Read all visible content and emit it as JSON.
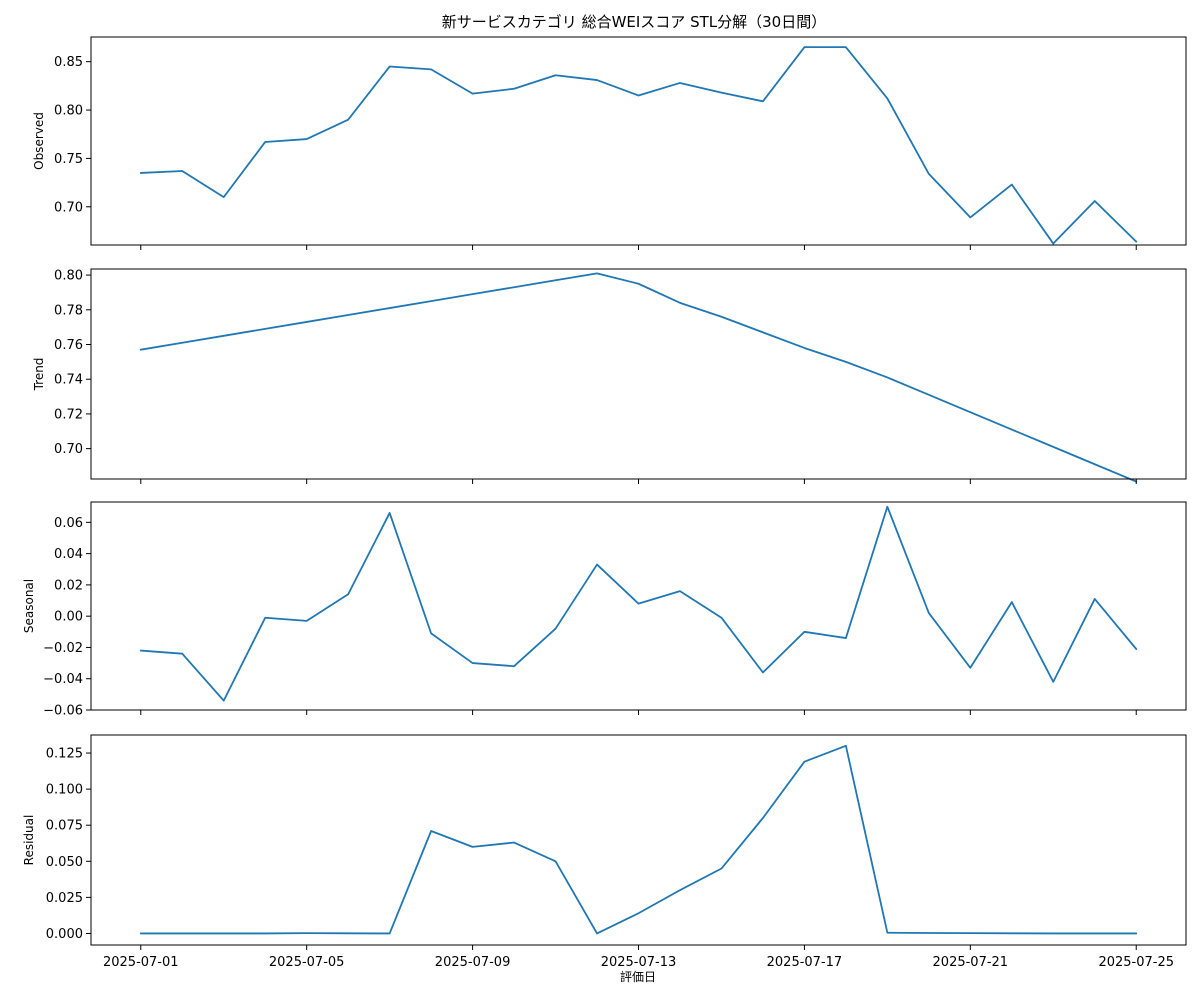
{
  "chart_data": {
    "type": "line",
    "title": "新サービスカテゴリ 総合WEIスコア STL分解（30日間）",
    "xlabel": "評価日",
    "x_tick_labels": [
      "2025-07-01",
      "2025-07-05",
      "2025-07-09",
      "2025-07-13",
      "2025-07-17",
      "2025-07-21",
      "2025-07-25"
    ],
    "x": [
      "2025-07-01",
      "2025-07-02",
      "2025-07-03",
      "2025-07-04",
      "2025-07-05",
      "2025-07-06",
      "2025-07-07",
      "2025-07-08",
      "2025-07-09",
      "2025-07-10",
      "2025-07-11",
      "2025-07-12",
      "2025-07-13",
      "2025-07-14",
      "2025-07-15",
      "2025-07-16",
      "2025-07-17",
      "2025-07-18",
      "2025-07-19",
      "2025-07-20",
      "2025-07-21",
      "2025-07-22",
      "2025-07-23",
      "2025-07-24",
      "2025-07-25"
    ],
    "xlim": [
      "2025-06-29T19:12",
      "2025-07-26T04:48"
    ],
    "grid": false,
    "color": "#1f77b4",
    "panels": [
      {
        "ylabel": "Observed",
        "ylim": [
          0.6605,
          0.8755
        ],
        "yticks": [
          0.7,
          0.75,
          0.8,
          0.85
        ],
        "ytick_labels": [
          "0.70",
          "0.75",
          "0.80",
          "0.85"
        ],
        "values": [
          0.735,
          0.737,
          0.71,
          0.767,
          0.77,
          0.79,
          0.845,
          0.842,
          0.817,
          0.822,
          0.836,
          0.831,
          0.815,
          0.828,
          0.818,
          0.809,
          0.865,
          0.865,
          0.812,
          0.734,
          0.689,
          0.723,
          0.662,
          0.706,
          0.664
        ]
      },
      {
        "ylabel": "Trend",
        "ylim": [
          0.6825,
          0.8035
        ],
        "yticks": [
          0.7,
          0.72,
          0.74,
          0.76,
          0.78,
          0.8
        ],
        "ytick_labels": [
          "0.70",
          "0.72",
          "0.74",
          "0.76",
          "0.78",
          "0.80"
        ],
        "values": [
          0.757,
          0.761,
          0.765,
          0.769,
          0.773,
          0.777,
          0.781,
          0.785,
          0.789,
          0.793,
          0.797,
          0.801,
          0.795,
          0.784,
          0.776,
          0.767,
          0.758,
          0.75,
          0.741,
          0.731,
          0.721,
          0.711,
          0.701,
          0.691,
          0.681
        ]
      },
      {
        "ylabel": "Seasonal",
        "ylim": [
          -0.06,
          0.073
        ],
        "yticks": [
          -0.06,
          -0.04,
          -0.02,
          0.0,
          0.02,
          0.04,
          0.06
        ],
        "ytick_labels": [
          "−0.06",
          "−0.04",
          "−0.02",
          "0.00",
          "0.02",
          "0.04",
          "0.06"
        ],
        "values": [
          -0.022,
          -0.024,
          -0.054,
          -0.001,
          -0.003,
          0.014,
          0.066,
          -0.011,
          -0.03,
          -0.032,
          -0.008,
          0.033,
          0.008,
          0.016,
          -0.001,
          -0.036,
          -0.01,
          -0.014,
          0.07,
          0.002,
          -0.033,
          0.009,
          -0.042,
          0.011,
          -0.021
        ]
      },
      {
        "ylabel": "Residual",
        "ylim": [
          -0.008,
          0.1375
        ],
        "yticks": [
          0.0,
          0.025,
          0.05,
          0.075,
          0.1,
          0.125
        ],
        "ytick_labels": [
          "0.000",
          "0.025",
          "0.050",
          "0.075",
          "0.100",
          "0.125"
        ],
        "values": [
          0.0,
          0.0,
          0.0,
          0.0,
          0.0002,
          0.0001,
          0.0,
          0.071,
          0.06,
          0.063,
          0.05,
          0.0,
          0.014,
          0.03,
          0.045,
          0.08,
          0.119,
          0.13,
          0.0005,
          0.0003,
          0.0002,
          0.0001,
          0.0,
          0.0,
          0.0
        ]
      }
    ]
  }
}
